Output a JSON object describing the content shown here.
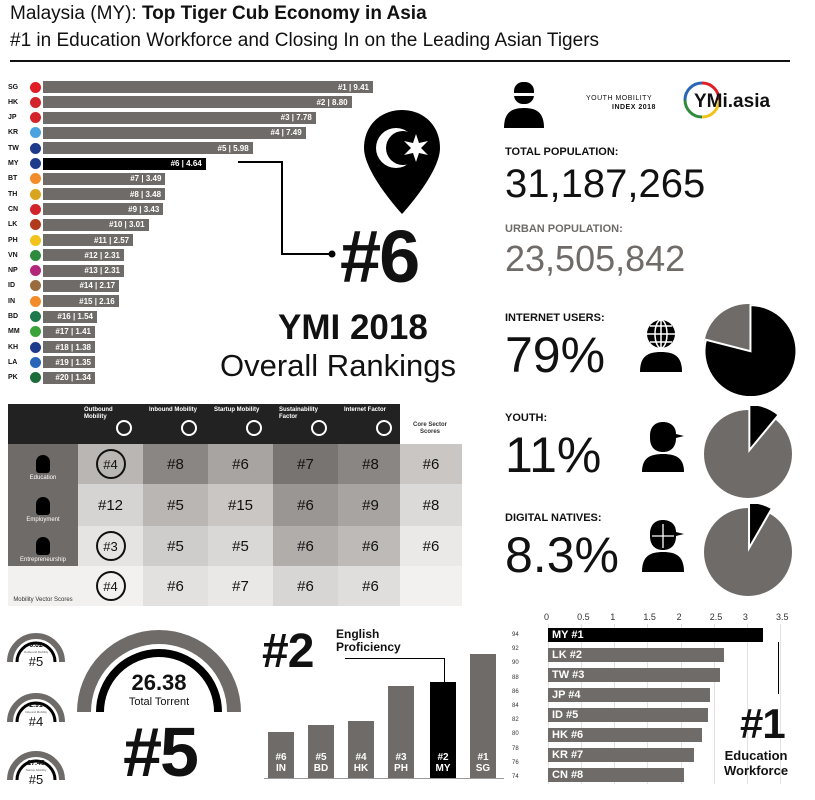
{
  "header": {
    "title_light": "Malaysia (MY): ",
    "title_bold": "Top Tiger Cub Economy in Asia",
    "subtitle": "#1 in Education Workforce and Closing In on the Leading Asian Tigers"
  },
  "overall_ranking": {
    "rows": [
      {
        "code": "SG",
        "label": "#1 | 9.41",
        "value": 9.41,
        "flag": "#e01c24"
      },
      {
        "code": "HK",
        "label": "#2 | 8.80",
        "value": 8.8,
        "flag": "#d3242b"
      },
      {
        "code": "JP",
        "label": "#3 | 7.78",
        "value": 7.78,
        "flag": "#d3242b"
      },
      {
        "code": "KR",
        "label": "#4 | 7.49",
        "value": 7.49,
        "flag": "#4aa3df"
      },
      {
        "code": "TW",
        "label": "#5 | 5.98",
        "value": 5.98,
        "flag": "#1e3a8a"
      },
      {
        "code": "MY",
        "label": "#6 | 4.64",
        "value": 4.64,
        "flag": "#1e3a8a",
        "highlight": true
      },
      {
        "code": "BT",
        "label": "#7 | 3.49",
        "value": 3.49,
        "flag": "#f28c28"
      },
      {
        "code": "TH",
        "label": "#8 | 3.48",
        "value": 3.48,
        "flag": "#d9a51e"
      },
      {
        "code": "CN",
        "label": "#9 | 3.43",
        "value": 3.43,
        "flag": "#d3242b"
      },
      {
        "code": "LK",
        "label": "#10 | 3.01",
        "value": 3.01,
        "flag": "#b23a1c"
      },
      {
        "code": "PH",
        "label": "#11 | 2.57",
        "value": 2.57,
        "flag": "#f2c318"
      },
      {
        "code": "VN",
        "label": "#12 | 2.31",
        "value": 2.31,
        "flag": "#2e8b3e"
      },
      {
        "code": "NP",
        "label": "#13 | 2.31",
        "value": 2.31,
        "flag": "#b3267a"
      },
      {
        "code": "ID",
        "label": "#14 | 2.17",
        "value": 2.17,
        "flag": "#9a6b3e"
      },
      {
        "code": "IN",
        "label": "#15 | 2.16",
        "value": 2.16,
        "flag": "#f28c28"
      },
      {
        "code": "BD",
        "label": "#16 | 1.54",
        "value": 1.54,
        "flag": "#1e7a4a"
      },
      {
        "code": "MM",
        "label": "#17 | 1.41",
        "value": 1.41,
        "flag": "#3aa33a"
      },
      {
        "code": "KH",
        "label": "#18 | 1.38",
        "value": 1.38,
        "flag": "#1e3a8a"
      },
      {
        "code": "LA",
        "label": "#19 | 1.35",
        "value": 1.35,
        "flag": "#2a66b8"
      },
      {
        "code": "PK",
        "label": "#20 | 1.34",
        "value": 1.34,
        "flag": "#1e6b3a"
      }
    ]
  },
  "overall": {
    "rank": "#6",
    "ymi": "YMI 2018",
    "caption": "Overall Rankings"
  },
  "matrix": {
    "columns": [
      "Outbound Mobility",
      "Inbound Mobility",
      "Startup Mobility",
      "Sustainability Factor",
      "Internet Factor",
      "Core Sector Scores"
    ],
    "rows": [
      {
        "label": "Education",
        "values": [
          "#4",
          "#8",
          "#6",
          "#7",
          "#8",
          "#6"
        ],
        "circled": [
          0
        ]
      },
      {
        "label": "Employment",
        "values": [
          "#12",
          "#5",
          "#15",
          "#6",
          "#9",
          "#8"
        ],
        "circled": []
      },
      {
        "label": "Entrepreneurship",
        "values": [
          "#3",
          "#5",
          "#5",
          "#6",
          "#6",
          "#6"
        ],
        "circled": [
          0
        ]
      },
      {
        "label": "Mobility Vector Scores",
        "values": [
          "#4",
          "#6",
          "#7",
          "#6",
          "#6",
          ""
        ],
        "circled": [
          0
        ]
      }
    ]
  },
  "brand": {
    "line1": "YOUTH MOBILITY",
    "line2": "INDEX 2018",
    "logo": "YMi.asia"
  },
  "stats": {
    "total_population_label": "TOTAL POPULATION:",
    "total_population": "31,187,265",
    "urban_population_label": "URBAN POPULATION:",
    "urban_population": "23,505,842",
    "internet_label": "INTERNET USERS:",
    "internet": "79%",
    "internet_fraction": 0.79,
    "youth_label": "YOUTH:",
    "youth": "11%",
    "youth_fraction": 0.11,
    "natives_label": "DIGITAL NATIVES:",
    "natives": "8.3%",
    "natives_fraction": 0.083
  },
  "torrent": {
    "small": [
      {
        "value": "6.02",
        "caption": "Outbound Mobility",
        "rank": "#5"
      },
      {
        "value": "2.91",
        "caption": "Inbound Mobility",
        "rank": "#4"
      },
      {
        "value": "17.45",
        "caption": "Startup Mobility",
        "rank": "#5"
      }
    ],
    "total_value": "26.38",
    "total_label": "Total Torrent",
    "total_rank": "#5"
  },
  "english": {
    "rank": "#2",
    "title_line1": "English",
    "title_line2": "Proficiency",
    "ticks": [
      "94",
      "92",
      "90",
      "88",
      "86",
      "84",
      "82",
      "80",
      "78",
      "76",
      "74"
    ],
    "bars": [
      {
        "rank": "#6",
        "code": "IN",
        "value": 80.5
      },
      {
        "rank": "#5",
        "code": "BD",
        "value": 81.5
      },
      {
        "rank": "#4",
        "code": "HK",
        "value": 82
      },
      {
        "rank": "#3",
        "code": "PH",
        "value": 87
      },
      {
        "rank": "#2",
        "code": "MY",
        "value": 87.5,
        "highlight": true
      },
      {
        "rank": "#1",
        "code": "SG",
        "value": 91.5
      }
    ]
  },
  "education": {
    "ticks": [
      "0",
      "0.5",
      "1",
      "1.5",
      "2",
      "2.5",
      "3",
      "3.5"
    ],
    "bars": [
      {
        "label": "MY #1",
        "value": 3.25,
        "highlight": true
      },
      {
        "label": "LK #2",
        "value": 2.65
      },
      {
        "label": "TW #3",
        "value": 2.6
      },
      {
        "label": "JP #4",
        "value": 2.45
      },
      {
        "label": "ID #5",
        "value": 2.42
      },
      {
        "label": "HK #6",
        "value": 2.33
      },
      {
        "label": "KR #7",
        "value": 2.2
      },
      {
        "label": "CN #8",
        "value": 2.05
      }
    ],
    "rank": "#1",
    "caption_line1": "Education",
    "caption_line2": "Workforce"
  }
}
